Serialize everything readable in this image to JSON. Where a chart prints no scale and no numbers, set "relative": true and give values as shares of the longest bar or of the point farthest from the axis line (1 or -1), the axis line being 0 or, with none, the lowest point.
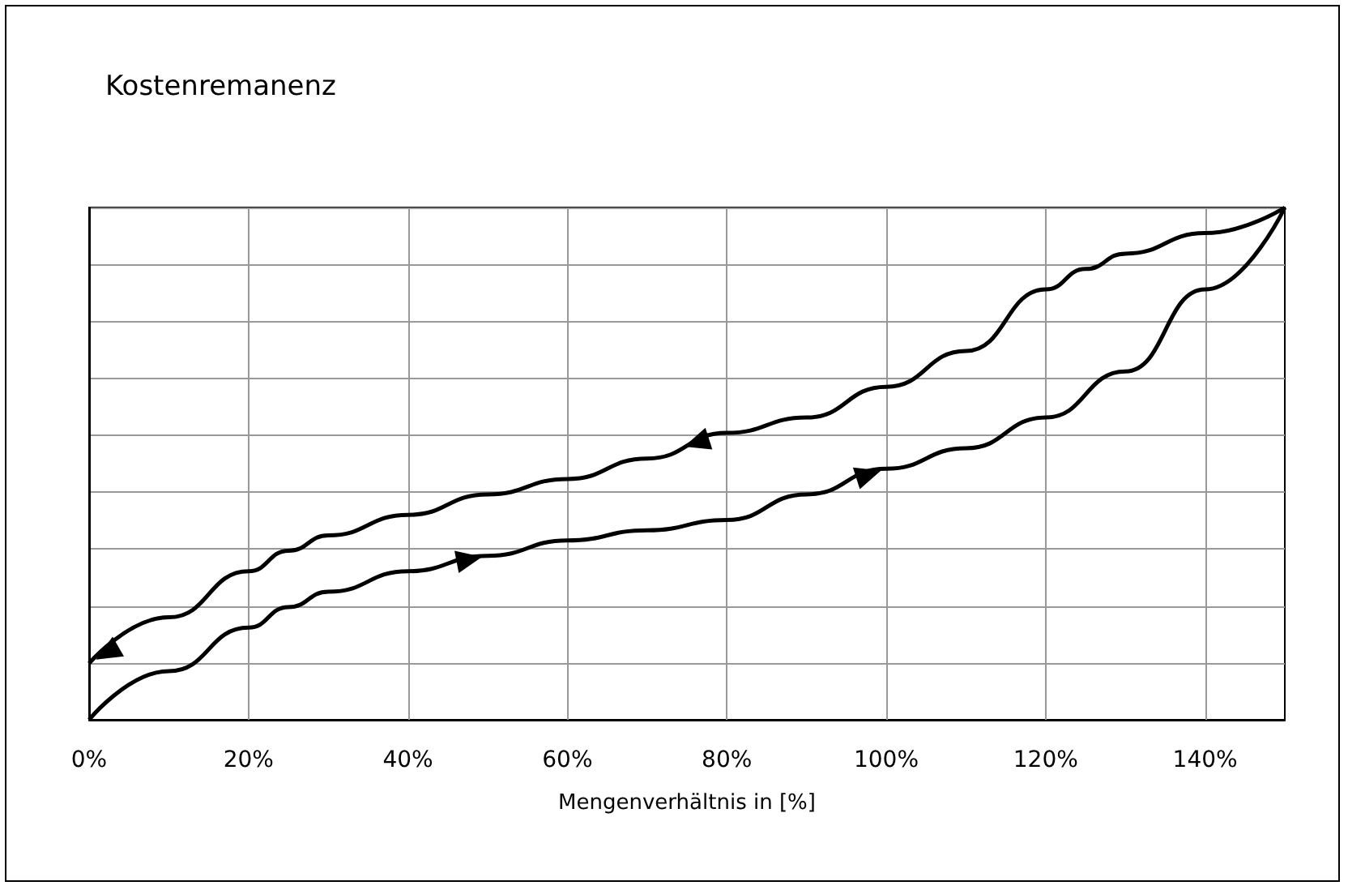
{
  "chart_data": {
    "type": "line",
    "title": "Kostenremanenz",
    "xlabel": "Mengenverhältnis in [%]",
    "relative": true,
    "grid": true,
    "marker": "none",
    "line_style": "solid",
    "xlim": [
      0,
      150
    ],
    "xticks": [
      {
        "value": 0,
        "label": "0%"
      },
      {
        "value": 20,
        "label": "20%"
      },
      {
        "value": 40,
        "label": "40%"
      },
      {
        "value": 60,
        "label": "60%"
      },
      {
        "value": 80,
        "label": "80%"
      },
      {
        "value": 100,
        "label": "100%"
      },
      {
        "value": 120,
        "label": "120%"
      },
      {
        "value": 140,
        "label": "140%"
      }
    ],
    "series": [
      {
        "color": "#000000",
        "x": [
          0,
          10,
          20,
          25,
          30,
          40,
          50,
          60,
          70,
          80,
          90,
          100,
          110,
          120,
          130,
          140,
          150
        ],
        "values": [
          0,
          0.095,
          0.18,
          0.22,
          0.25,
          0.29,
          0.32,
          0.35,
          0.37,
          0.39,
          0.44,
          0.49,
          0.53,
          0.59,
          0.68,
          0.84,
          1
        ]
      },
      {
        "color": "#000000",
        "x": [
          0,
          10,
          20,
          25,
          30,
          40,
          50,
          60,
          70,
          80,
          90,
          100,
          110,
          120,
          125,
          130,
          140,
          150
        ],
        "values": [
          0.11,
          0.2,
          0.29,
          0.33,
          0.36,
          0.4,
          0.44,
          0.47,
          0.51,
          0.56,
          0.59,
          0.65,
          0.72,
          0.84,
          0.88,
          0.91,
          0.95,
          1
        ]
      }
    ]
  }
}
